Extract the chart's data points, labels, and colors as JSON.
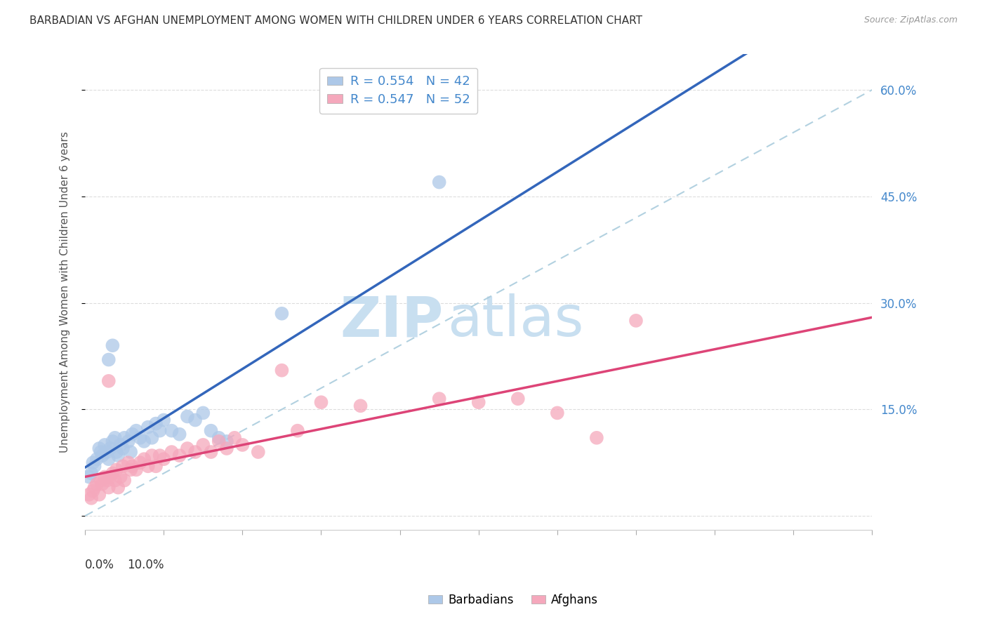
{
  "title": "BARBADIAN VS AFGHAN UNEMPLOYMENT AMONG WOMEN WITH CHILDREN UNDER 6 YEARS CORRELATION CHART",
  "source": "Source: ZipAtlas.com",
  "ylabel": "Unemployment Among Women with Children Under 6 years",
  "xlim": [
    0.0,
    10.0
  ],
  "ylim": [
    -2.0,
    65.0
  ],
  "right_yticks": [
    15.0,
    30.0,
    45.0,
    60.0
  ],
  "grid_color": "#dddddd",
  "background_color": "#ffffff",
  "barbadian_color": "#adc8e8",
  "afghan_color": "#f5a8bc",
  "barbadian_line_color": "#3366bb",
  "afghan_line_color": "#dd4477",
  "diagonal_color": "#aaccdd",
  "barbadian_points": [
    [
      0.05,
      5.5
    ],
    [
      0.08,
      6.0
    ],
    [
      0.1,
      7.5
    ],
    [
      0.12,
      7.0
    ],
    [
      0.15,
      8.0
    ],
    [
      0.18,
      9.5
    ],
    [
      0.2,
      9.0
    ],
    [
      0.22,
      8.5
    ],
    [
      0.25,
      10.0
    ],
    [
      0.28,
      9.0
    ],
    [
      0.3,
      8.0
    ],
    [
      0.32,
      9.5
    ],
    [
      0.35,
      10.5
    ],
    [
      0.38,
      11.0
    ],
    [
      0.4,
      9.0
    ],
    [
      0.42,
      8.5
    ],
    [
      0.45,
      10.0
    ],
    [
      0.48,
      9.5
    ],
    [
      0.5,
      11.0
    ],
    [
      0.55,
      10.5
    ],
    [
      0.58,
      9.0
    ],
    [
      0.6,
      11.5
    ],
    [
      0.65,
      12.0
    ],
    [
      0.7,
      11.0
    ],
    [
      0.75,
      10.5
    ],
    [
      0.8,
      12.5
    ],
    [
      0.85,
      11.0
    ],
    [
      0.9,
      13.0
    ],
    [
      0.95,
      12.0
    ],
    [
      1.0,
      13.5
    ],
    [
      1.1,
      12.0
    ],
    [
      1.2,
      11.5
    ],
    [
      1.3,
      14.0
    ],
    [
      1.4,
      13.5
    ],
    [
      1.5,
      14.5
    ],
    [
      1.6,
      12.0
    ],
    [
      1.7,
      11.0
    ],
    [
      1.8,
      10.5
    ],
    [
      0.3,
      22.0
    ],
    [
      0.35,
      24.0
    ],
    [
      2.5,
      28.5
    ],
    [
      4.5,
      47.0
    ]
  ],
  "afghan_points": [
    [
      0.05,
      3.0
    ],
    [
      0.08,
      2.5
    ],
    [
      0.1,
      3.5
    ],
    [
      0.12,
      4.0
    ],
    [
      0.15,
      4.5
    ],
    [
      0.18,
      3.0
    ],
    [
      0.2,
      5.0
    ],
    [
      0.22,
      4.5
    ],
    [
      0.25,
      5.5
    ],
    [
      0.28,
      5.0
    ],
    [
      0.3,
      4.0
    ],
    [
      0.32,
      5.5
    ],
    [
      0.35,
      6.0
    ],
    [
      0.38,
      5.0
    ],
    [
      0.4,
      6.5
    ],
    [
      0.42,
      4.0
    ],
    [
      0.45,
      5.5
    ],
    [
      0.48,
      7.0
    ],
    [
      0.5,
      5.0
    ],
    [
      0.55,
      7.5
    ],
    [
      0.58,
      6.5
    ],
    [
      0.6,
      7.0
    ],
    [
      0.65,
      6.5
    ],
    [
      0.7,
      7.5
    ],
    [
      0.75,
      8.0
    ],
    [
      0.8,
      7.0
    ],
    [
      0.85,
      8.5
    ],
    [
      0.9,
      7.0
    ],
    [
      0.95,
      8.5
    ],
    [
      1.0,
      8.0
    ],
    [
      1.1,
      9.0
    ],
    [
      1.2,
      8.5
    ],
    [
      1.3,
      9.5
    ],
    [
      1.4,
      9.0
    ],
    [
      1.5,
      10.0
    ],
    [
      1.6,
      9.0
    ],
    [
      1.7,
      10.5
    ],
    [
      1.8,
      9.5
    ],
    [
      1.9,
      11.0
    ],
    [
      2.0,
      10.0
    ],
    [
      0.3,
      19.0
    ],
    [
      2.5,
      20.5
    ],
    [
      2.7,
      12.0
    ],
    [
      3.0,
      16.0
    ],
    [
      3.5,
      15.5
    ],
    [
      4.5,
      16.5
    ],
    [
      5.0,
      16.0
    ],
    [
      5.5,
      16.5
    ],
    [
      6.0,
      14.5
    ],
    [
      6.5,
      11.0
    ],
    [
      7.0,
      27.5
    ],
    [
      2.2,
      9.0
    ]
  ],
  "watermark_zip": "ZIP",
  "watermark_atlas": "atlas",
  "watermark_color_zip": "#c8dff0",
  "watermark_color_atlas": "#c8dff0"
}
